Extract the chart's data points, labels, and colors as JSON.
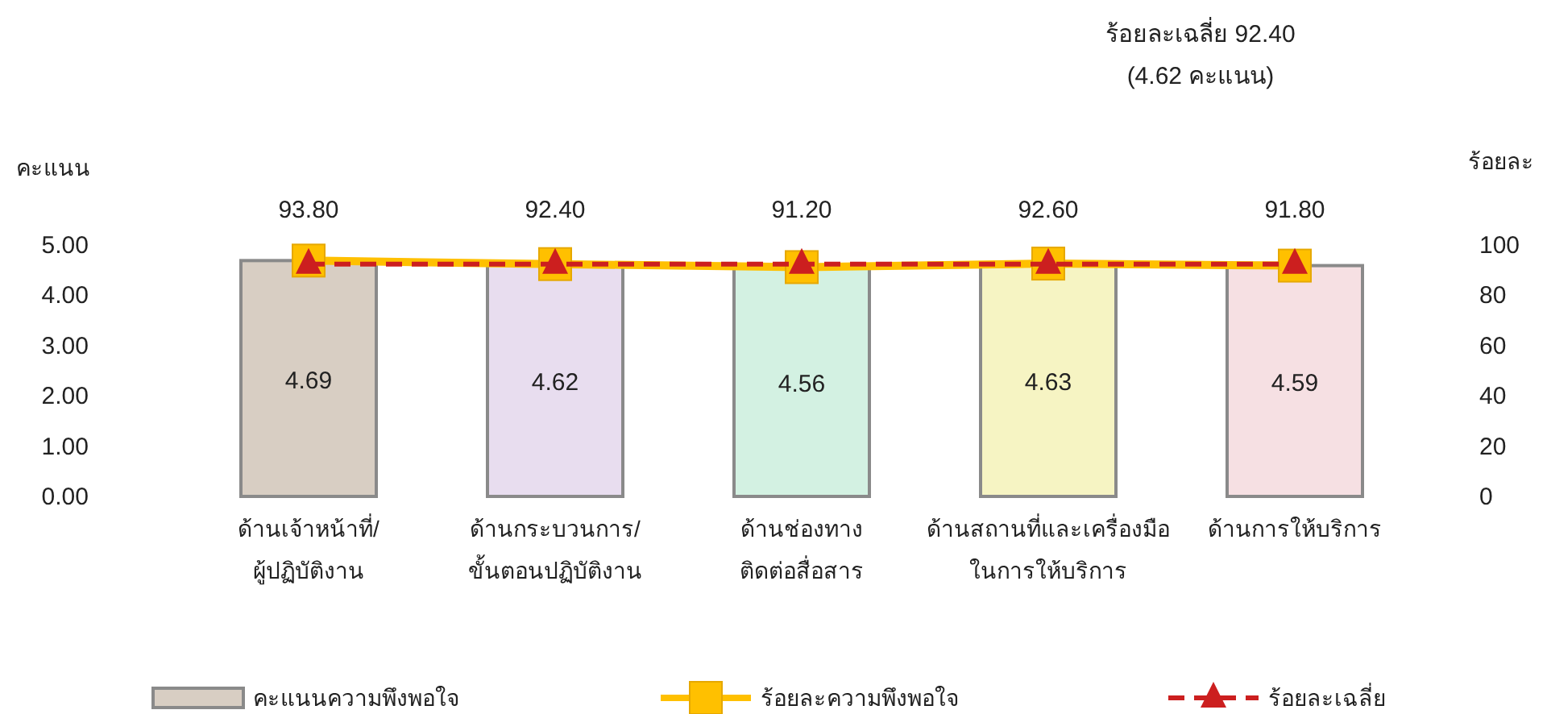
{
  "chart_data": {
    "type": "bar",
    "categories": [
      "ด้านเจ้าหน้าที่/\nผู้ปฏิบัติงาน",
      "ด้านกระบวนการ/\nขั้นตอนปฏิบัติงาน",
      "ด้านช่องทาง\nติดต่อสื่อสาร",
      "ด้านสถานที่และเครื่องมือ\nในการให้บริการ",
      "ด้านการให้บริการ"
    ],
    "series": [
      {
        "name": "คะแนนความพึงพอใจ",
        "colors": [
          "#d8cec3",
          "#e8ddef",
          "#d3f1e2",
          "#f6f4c3",
          "#f6e0e3"
        ],
        "values": [
          4.69,
          4.62,
          4.56,
          4.63,
          4.59
        ],
        "value_labels": [
          "4.69",
          "4.62",
          "4.56",
          "4.63",
          "4.59"
        ]
      },
      {
        "name": "ร้อยละความพึงพอใจ",
        "type": "line",
        "axis": "y2",
        "color": "#ffc000",
        "marker": "square",
        "line_style": "solid",
        "values": [
          93.8,
          92.4,
          91.2,
          92.6,
          91.8
        ],
        "value_labels": [
          "93.80",
          "92.40",
          "91.20",
          "92.60",
          "91.80"
        ]
      },
      {
        "name": "ร้อยละเฉลี่ย",
        "type": "line",
        "axis": "y2",
        "color": "#cc1f1f",
        "marker": "triangle",
        "line_style": "dashed",
        "values": [
          92.4,
          92.4,
          92.4,
          92.4,
          92.4
        ]
      }
    ],
    "ylabel": "คะแนน",
    "y2label": "ร้อยละ",
    "ylim": [
      0,
      5
    ],
    "yticks": [
      {
        "value": 0,
        "label": "0.00"
      },
      {
        "value": 1,
        "label": "1.00"
      },
      {
        "value": 2,
        "label": "2.00"
      },
      {
        "value": 3,
        "label": "3.00"
      },
      {
        "value": 4,
        "label": "4.00"
      },
      {
        "value": 5,
        "label": "5.00"
      }
    ],
    "y2lim": [
      0,
      100
    ],
    "y2ticks": [
      0,
      20,
      40,
      60,
      80,
      100
    ],
    "annotations": [
      "ร้อยละเฉลี่ย 92.40\n(4.62 คะแนน)"
    ],
    "legend": "bottom"
  }
}
